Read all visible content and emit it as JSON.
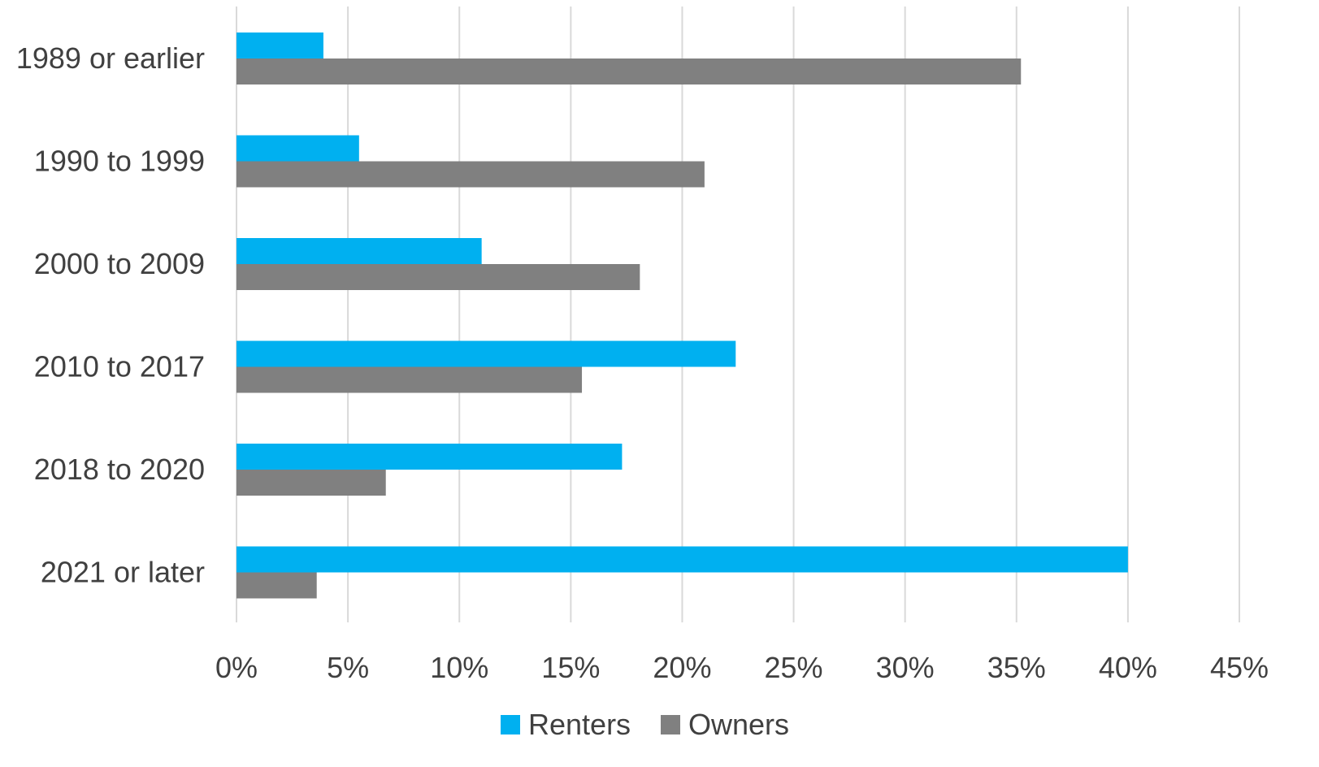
{
  "chart_data": {
    "type": "bar",
    "orientation": "horizontal",
    "categories": [
      "1989 or earlier",
      "1990 to 1999",
      "2000 to 2009",
      "2010 to 2017",
      "2018 to 2020",
      "2021 or later"
    ],
    "series": [
      {
        "name": "Renters",
        "color": "#00b0f0",
        "values": [
          3.9,
          5.5,
          11.0,
          22.4,
          17.3,
          40.0
        ]
      },
      {
        "name": "Owners",
        "color": "#808080",
        "values": [
          35.2,
          21.0,
          18.1,
          15.5,
          6.7,
          3.6
        ]
      }
    ],
    "xticks": [
      "0%",
      "5%",
      "10%",
      "15%",
      "20%",
      "25%",
      "30%",
      "35%",
      "40%",
      "45%"
    ],
    "xlim": [
      0,
      45
    ],
    "value_unit": "%",
    "grid": "vertical",
    "gridline_color": "#d9d9d9",
    "legend_placement": "bottom-center",
    "title": "",
    "xlabel": "",
    "ylabel": ""
  }
}
